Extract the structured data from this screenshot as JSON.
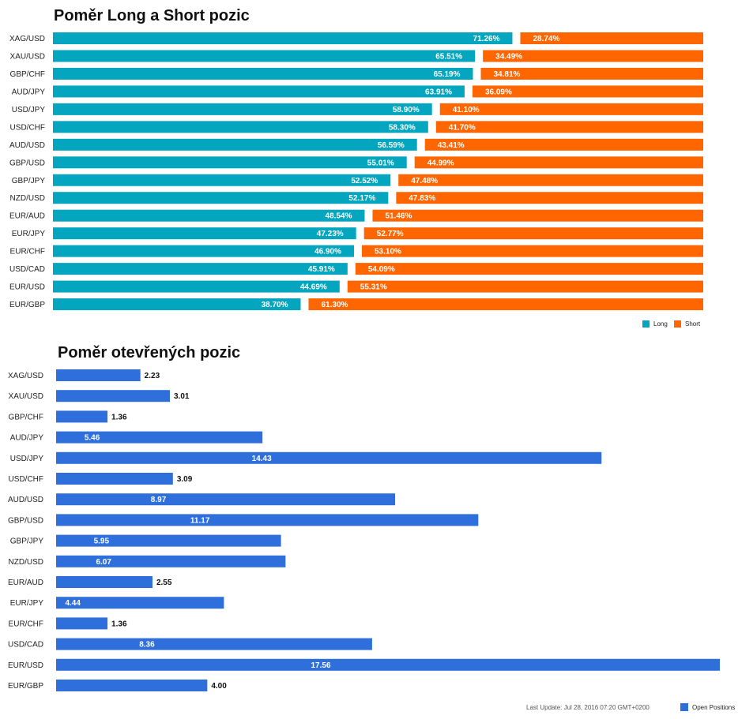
{
  "charts_meta": {
    "legend_long": "Long",
    "legend_short": "Short",
    "legend_open": "Open Positions",
    "last_update": "Last Update: Jul 28, 2016 07:20 GMT+0200"
  },
  "colors": {
    "long": "#03a6be",
    "short": "#ff6600",
    "open": "#2e6fdc"
  },
  "chart_data": [
    {
      "type": "bar",
      "orientation": "horizontal",
      "stacked": true,
      "title": "Poměr Long a Short pozic",
      "categories": [
        "XAG/USD",
        "XAU/USD",
        "GBP/CHF",
        "AUD/JPY",
        "USD/JPY",
        "USD/CHF",
        "AUD/USD",
        "GBP/USD",
        "GBP/JPY",
        "NZD/USD",
        "EUR/AUD",
        "EUR/JPY",
        "EUR/CHF",
        "USD/CAD",
        "EUR/USD",
        "EUR/GBP"
      ],
      "series": [
        {
          "name": "Long",
          "values": [
            71.26,
            65.51,
            65.19,
            63.91,
            58.9,
            58.3,
            56.59,
            55.01,
            52.52,
            52.17,
            48.54,
            47.23,
            46.9,
            45.91,
            44.69,
            38.7
          ]
        },
        {
          "name": "Short",
          "values": [
            28.74,
            34.49,
            34.81,
            36.09,
            41.1,
            41.7,
            43.41,
            44.99,
            47.48,
            47.83,
            51.46,
            52.77,
            53.1,
            54.09,
            55.31,
            61.3
          ]
        }
      ],
      "labels_long": [
        "71.26%",
        "65.51%",
        "65.19%",
        "63.91%",
        "58.90%",
        "58.30%",
        "56.59%",
        "55.01%",
        "52.52%",
        "52.17%",
        "48.54%",
        "47.23%",
        "46.90%",
        "45.91%",
        "44.69%",
        "38.70%"
      ],
      "labels_short": [
        "28.74%",
        "34.49%",
        "34.81%",
        "36.09%",
        "41.10%",
        "41.70%",
        "43.41%",
        "44.99%",
        "47.48%",
        "47.83%",
        "51.46%",
        "52.77%",
        "53.10%",
        "54.09%",
        "55.31%",
        "61.30%"
      ],
      "xlim": [
        0,
        100
      ],
      "legend_position": "bottom-right",
      "grid": false
    },
    {
      "type": "bar",
      "orientation": "horizontal",
      "title": "Poměr otevřených pozic",
      "categories": [
        "XAG/USD",
        "XAU/USD",
        "GBP/CHF",
        "AUD/JPY",
        "USD/JPY",
        "USD/CHF",
        "AUD/USD",
        "GBP/USD",
        "GBP/JPY",
        "NZD/USD",
        "EUR/AUD",
        "EUR/JPY",
        "EUR/CHF",
        "USD/CAD",
        "EUR/USD",
        "EUR/GBP"
      ],
      "series": [
        {
          "name": "Open Positions",
          "values": [
            2.23,
            3.01,
            1.36,
            5.46,
            14.43,
            3.09,
            8.97,
            11.17,
            5.95,
            6.07,
            2.55,
            4.44,
            1.36,
            8.36,
            17.56,
            4.0
          ]
        }
      ],
      "labels": [
        "2.23",
        "3.01",
        "1.36",
        "5.46",
        "14.43",
        "3.09",
        "8.97",
        "11.17",
        "5.95",
        "6.07",
        "2.55",
        "4.44",
        "1.36",
        "8.36",
        "17.56",
        "4.00"
      ],
      "xlim": [
        0,
        17.56
      ],
      "legend_position": "bottom-right",
      "grid": false
    }
  ]
}
